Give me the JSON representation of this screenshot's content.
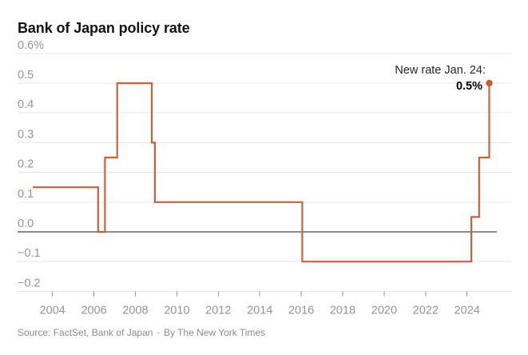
{
  "chart": {
    "title": "Bank of Japan policy rate",
    "annotation": {
      "label": "New rate Jan. 24:",
      "value": "0.5%"
    }
  },
  "footer": {
    "source": "Source: FactSet, Bank of Japan",
    "separator": "•",
    "byline": "By The New York Times"
  },
  "chart_data": {
    "type": "line",
    "subtype": "step",
    "title": "Bank of Japan policy rate",
    "unit": "percent",
    "xlabel": "",
    "ylabel": "",
    "ylim": [
      -0.2,
      0.6
    ],
    "x_range": [
      2003.05,
      2025.45
    ],
    "grid": "horizontal",
    "legend": "none",
    "y_ticks": [
      {
        "value": 0.6,
        "label": "0.6%"
      },
      {
        "value": 0.5,
        "label": "0.5"
      },
      {
        "value": 0.4,
        "label": "0.4"
      },
      {
        "value": 0.3,
        "label": "0.3"
      },
      {
        "value": 0.2,
        "label": "0.2"
      },
      {
        "value": 0.1,
        "label": "0.1"
      },
      {
        "value": 0.0,
        "label": "0.0"
      },
      {
        "value": -0.1,
        "label": "−0.1"
      },
      {
        "value": -0.2,
        "label": "−0.2"
      }
    ],
    "x_ticks": [
      {
        "year": 2004,
        "label": "2004"
      },
      {
        "year": 2006,
        "label": "2006"
      },
      {
        "year": 2008,
        "label": "2008"
      },
      {
        "year": 2010,
        "label": "2010"
      },
      {
        "year": 2012,
        "label": "2012"
      },
      {
        "year": 2014,
        "label": "2014"
      },
      {
        "year": 2016,
        "label": "2016"
      },
      {
        "year": 2018,
        "label": "2018"
      },
      {
        "year": 2020,
        "label": "2020"
      },
      {
        "year": 2022,
        "label": "2022"
      },
      {
        "year": 2024,
        "label": "2024"
      }
    ],
    "series": [
      {
        "name": "Bank of Japan policy rate",
        "points": [
          {
            "year": 2003.05,
            "value": 0.15
          },
          {
            "year": 2006.2,
            "value": 0.15
          },
          {
            "year": 2006.2,
            "value": 0.0
          },
          {
            "year": 2006.53,
            "value": 0.0
          },
          {
            "year": 2006.53,
            "value": 0.25
          },
          {
            "year": 2007.12,
            "value": 0.25
          },
          {
            "year": 2007.12,
            "value": 0.5
          },
          {
            "year": 2008.79,
            "value": 0.5
          },
          {
            "year": 2008.79,
            "value": 0.3
          },
          {
            "year": 2008.94,
            "value": 0.3
          },
          {
            "year": 2008.94,
            "value": 0.1
          },
          {
            "year": 2016.05,
            "value": 0.1
          },
          {
            "year": 2016.05,
            "value": -0.1
          },
          {
            "year": 2024.21,
            "value": -0.1
          },
          {
            "year": 2024.21,
            "value": 0.05
          },
          {
            "year": 2024.58,
            "value": 0.05
          },
          {
            "year": 2024.58,
            "value": 0.25
          },
          {
            "year": 2025.07,
            "value": 0.25
          },
          {
            "year": 2025.07,
            "value": 0.5
          }
        ]
      }
    ],
    "end_point": {
      "year": 2025.07,
      "value": 0.5,
      "annotation": "New rate Jan. 24: 0.5%"
    },
    "colors": {
      "line": "#cc6138",
      "dot": "#cc5c32",
      "grid": "#e4e4e4",
      "zero_line": "#1a1a1a",
      "tick_mark": "#8f8f8f",
      "tick_text": "#949494",
      "title_text": "#121212",
      "annotation_text": "#262626",
      "source_text": "#8b8b8b",
      "background": "#ffffff"
    }
  }
}
